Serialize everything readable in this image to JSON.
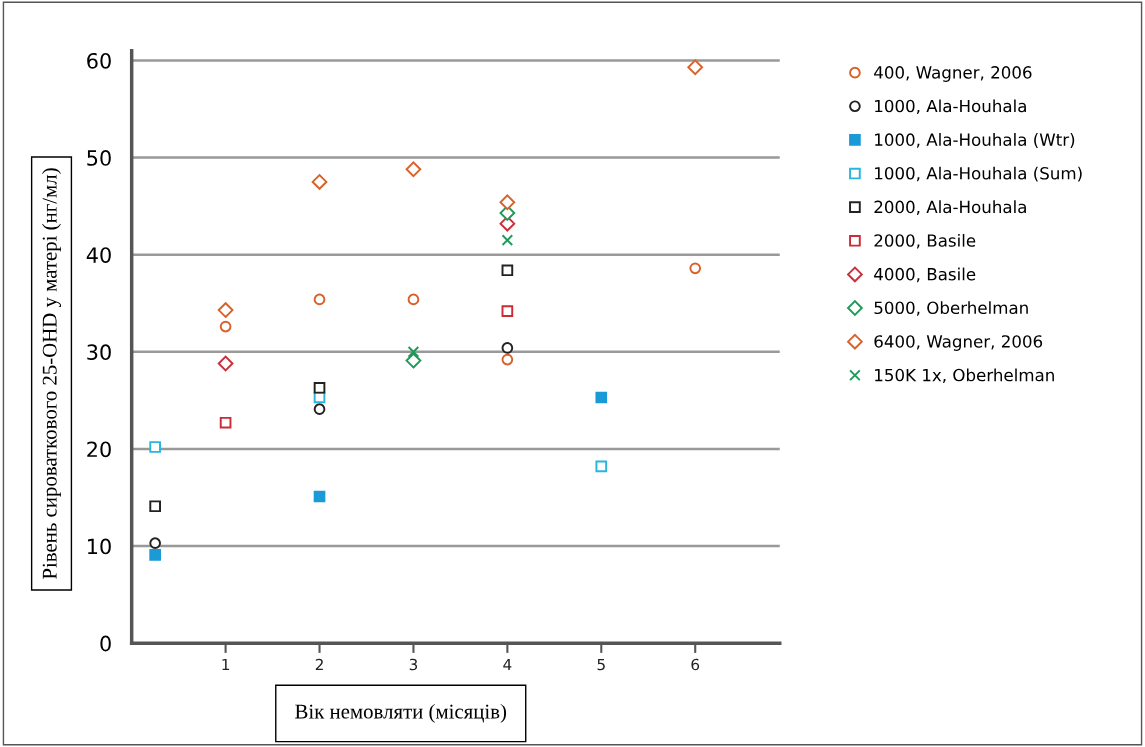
{
  "chart_data": {
    "type": "scatter",
    "xlabel": "Вік немовляти (місяців)",
    "ylabel": "Рівень сироваткового 25-OHD у матері (нг/мл)",
    "xlim": [
      0,
      6.9
    ],
    "ylim": [
      0,
      61
    ],
    "xticks": [
      1,
      2,
      3,
      4,
      5,
      6
    ],
    "yticks": [
      0,
      10,
      20,
      30,
      40,
      50,
      60
    ],
    "grid": "y",
    "legend": "right",
    "series": [
      {
        "name": "400, Wagner, 2006",
        "color": "#d9622b",
        "marker": "circle",
        "x": [
          1,
          2,
          3,
          4,
          6
        ],
        "values": [
          32.6,
          35.4,
          35.4,
          29.2,
          38.6
        ]
      },
      {
        "name": "1000, Ala-Houhala",
        "color": "#222222",
        "marker": "circle",
        "x": [
          0.25,
          2,
          4
        ],
        "values": [
          10.3,
          24.1,
          30.4
        ]
      },
      {
        "name": "1000, Ala-Houhala (Wtr)",
        "color": "#1a9ad6",
        "marker": "square-filled",
        "x": [
          0.25,
          2,
          5
        ],
        "values": [
          9.1,
          15.1,
          25.3
        ]
      },
      {
        "name": "1000, Ala-Houhala (Sum)",
        "color": "#29b5e0",
        "marker": "square",
        "x": [
          0.25,
          2,
          5
        ],
        "values": [
          20.2,
          25.3,
          18.2
        ]
      },
      {
        "name": "2000, Ala-Houhala",
        "color": "#222222",
        "marker": "square",
        "x": [
          0.25,
          2,
          4
        ],
        "values": [
          14.1,
          26.3,
          38.4
        ]
      },
      {
        "name": "2000, Basile",
        "color": "#cc2a36",
        "marker": "square",
        "x": [
          1,
          4
        ],
        "values": [
          22.7,
          34.2
        ]
      },
      {
        "name": "4000, Basile",
        "color": "#c8303a",
        "marker": "diamond",
        "x": [
          1,
          4
        ],
        "values": [
          28.8,
          43.2
        ]
      },
      {
        "name": "5000, Oberhelman",
        "color": "#1e9a5a",
        "marker": "diamond",
        "x": [
          3,
          4
        ],
        "values": [
          29.1,
          44.3
        ]
      },
      {
        "name": "6400, Wagner, 2006",
        "color": "#d9622b",
        "marker": "diamond",
        "x": [
          1,
          2,
          3,
          4,
          6
        ],
        "values": [
          34.3,
          47.5,
          48.8,
          45.4,
          59.3
        ]
      },
      {
        "name": "150K 1x, Oberhelman",
        "color": "#1e9a5a",
        "marker": "cross",
        "x": [
          3,
          4
        ],
        "values": [
          30.0,
          41.5
        ]
      }
    ]
  }
}
